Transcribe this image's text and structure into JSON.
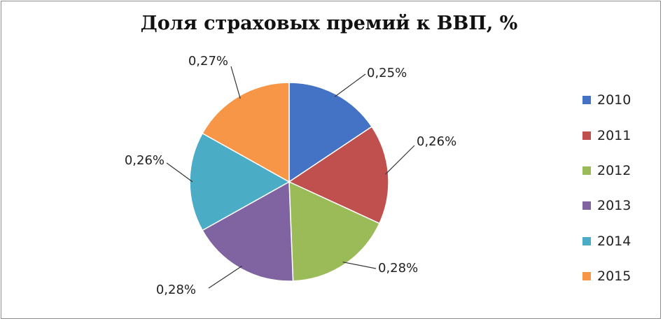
{
  "chart_data": {
    "type": "pie",
    "title": "Доля страховых премий к ВВП, %",
    "categories": [
      "2010",
      "2011",
      "2012",
      "2013",
      "2014",
      "2015"
    ],
    "values": [
      0.25,
      0.26,
      0.28,
      0.28,
      0.26,
      0.27
    ],
    "data_labels": [
      "0,25%",
      "0,26%",
      "0,28%",
      "0,28%",
      "0,26%",
      "0,27%"
    ],
    "colors": [
      "#4472c4",
      "#c0504d",
      "#9bbb59",
      "#8064a2",
      "#4bacc6",
      "#f79646"
    ],
    "legend": "right"
  }
}
